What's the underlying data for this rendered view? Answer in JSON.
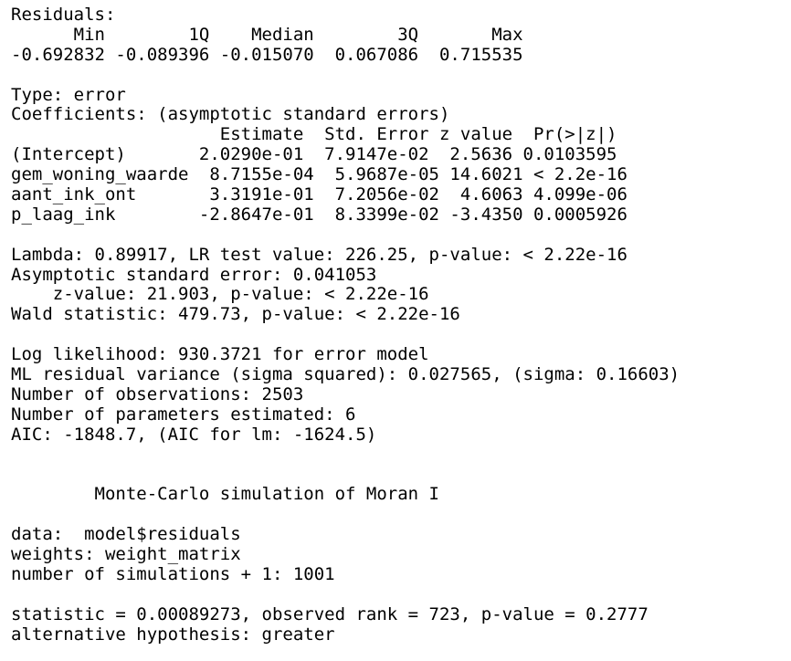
{
  "console": {
    "lines": [
      "Residuals:",
      "      Min        1Q    Median        3Q       Max ",
      "-0.692832 -0.089396 -0.015070  0.067086  0.715535 ",
      "",
      "Type: error ",
      "Coefficients: (asymptotic standard errors) ",
      "                    Estimate  Std. Error z value  Pr(>|z|)",
      "(Intercept)       2.0290e-01  7.9147e-02  2.5636 0.0103595",
      "gem_woning_waarde  8.7155e-04  5.9687e-05 14.6021 < 2.2e-16",
      "aant_ink_ont       3.3191e-01  7.2056e-02  4.6063 4.099e-06",
      "p_laag_ink        -2.8647e-01  8.3399e-02 -3.4350 0.0005926",
      "",
      "Lambda: 0.89917, LR test value: 226.25, p-value: < 2.22e-16",
      "Asymptotic standard error: 0.041053",
      "    z-value: 21.903, p-value: < 2.22e-16",
      "Wald statistic: 479.73, p-value: < 2.22e-16",
      "",
      "Log likelihood: 930.3721 for error model",
      "ML residual variance (sigma squared): 0.027565, (sigma: 0.16603)",
      "Number of observations: 2503 ",
      "Number of parameters estimated: 6 ",
      "AIC: -1848.7, (AIC for lm: -1624.5)",
      "",
      "",
      "        Monte-Carlo simulation of Moran I",
      "",
      "data:  model$residuals ",
      "weights: weight_matrix  ",
      "number of simulations + 1: 1001 ",
      "",
      "statistic = 0.00089273, observed rank = 723, p-value = 0.2777",
      "alternative hypothesis: greater"
    ]
  }
}
